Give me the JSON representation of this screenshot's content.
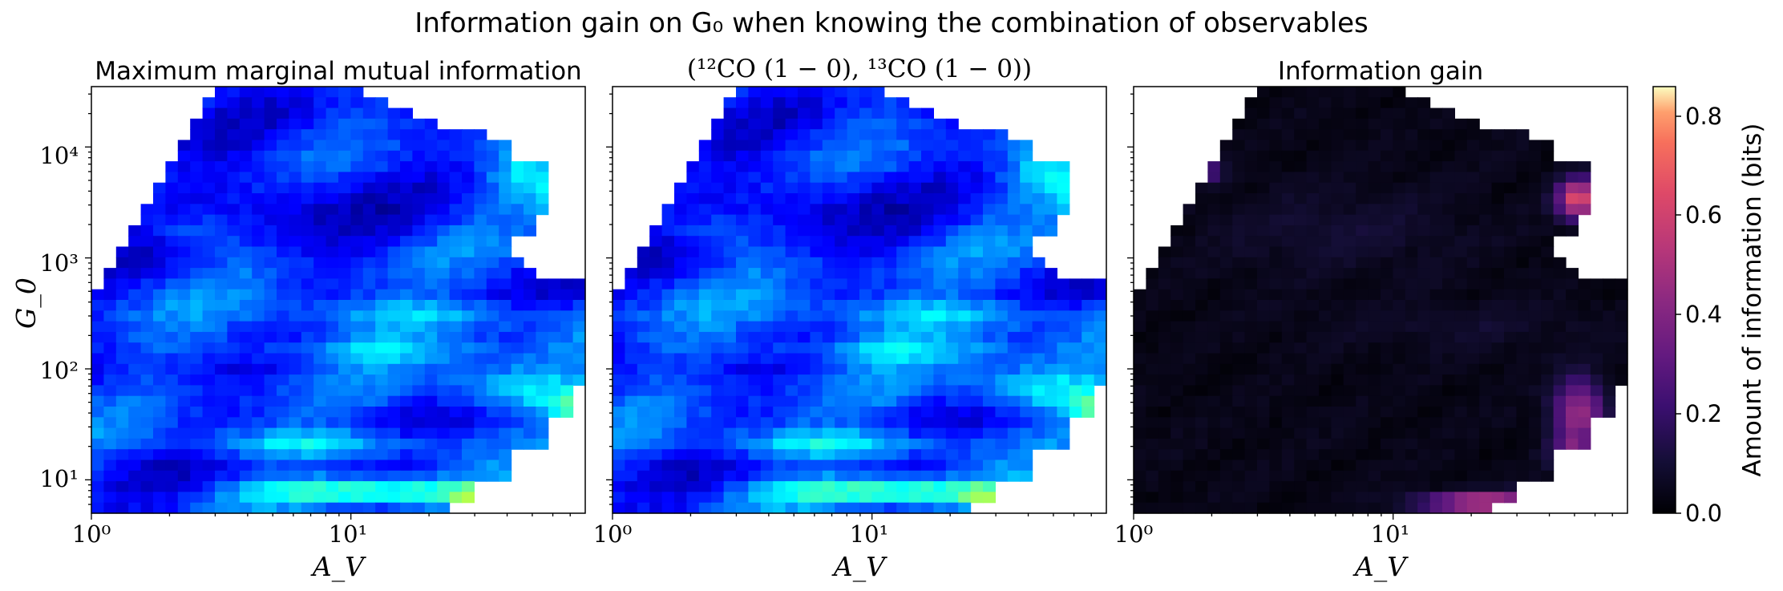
{
  "figure": {
    "suptitle": "Information gain on G₀ when knowing the combination of observables"
  },
  "chart_data": [
    {
      "type": "heatmap",
      "title": "Maximum marginal mutual information",
      "xlabel": "A_V",
      "ylabel": "G_0",
      "xscale": "log",
      "yscale": "log",
      "xlim": [
        1,
        80
      ],
      "ylim": [
        5,
        35000
      ],
      "xticks": [
        {
          "value": 1,
          "label": "10⁰"
        },
        {
          "value": 10,
          "label": "10¹"
        }
      ],
      "yticks": [
        {
          "value": 10,
          "label": "10¹"
        },
        {
          "value": 100,
          "label": "10²"
        },
        {
          "value": 1000,
          "label": "10³"
        },
        {
          "value": 10000,
          "label": "10⁴"
        }
      ],
      "colormap": "jet",
      "value_range": [
        0,
        0.86
      ],
      "typical_value": 0.12,
      "peak_values": [
        {
          "A_V": 70,
          "G_0": 55,
          "value": 0.55
        },
        {
          "A_V": 18,
          "G_0": 7,
          "value": 0.38
        },
        {
          "A_V": 55,
          "G_0": 1700,
          "value": 0.33
        }
      ]
    },
    {
      "type": "heatmap",
      "title": "(¹²CO (1 − 0), ¹³CO (1 − 0))",
      "xlabel": "A_V",
      "xscale": "log",
      "yscale": "log",
      "xlim": [
        1,
        80
      ],
      "ylim": [
        5,
        35000
      ],
      "xticks": [
        {
          "value": 1,
          "label": "10⁰"
        },
        {
          "value": 10,
          "label": "10¹"
        }
      ],
      "colormap": "jet",
      "value_range": [
        0,
        0.86
      ],
      "typical_value": 0.12,
      "peak_values": [
        {
          "A_V": 70,
          "G_0": 55,
          "value": 0.6
        },
        {
          "A_V": 20,
          "G_0": 7,
          "value": 0.42
        },
        {
          "A_V": 55,
          "G_0": 1600,
          "value": 0.38
        }
      ]
    },
    {
      "type": "heatmap",
      "title": "Information gain",
      "xlabel": "A_V",
      "xscale": "log",
      "yscale": "log",
      "xlim": [
        1,
        80
      ],
      "ylim": [
        5,
        35000
      ],
      "xticks": [
        {
          "value": 1,
          "label": "10⁰"
        },
        {
          "value": 10,
          "label": "10¹"
        }
      ],
      "colormap": "magma",
      "value_range": [
        0,
        0.86
      ],
      "typical_value": 0.01,
      "peak_values": [
        {
          "A_V": 60,
          "G_0": 1600,
          "value": 0.5
        },
        {
          "A_V": 25,
          "G_0": 6,
          "value": 0.48
        },
        {
          "A_V": 55,
          "G_0": 30,
          "value": 0.35
        },
        {
          "A_V": 1.8,
          "G_0": 3600,
          "value": 0.25
        }
      ]
    }
  ],
  "colorbar": {
    "label": "Amount of information (bits)",
    "colormap": "magma",
    "min": 0,
    "max": 0.86,
    "ticks": [
      "0.0",
      "0.2",
      "0.4",
      "0.6",
      "0.8"
    ]
  }
}
